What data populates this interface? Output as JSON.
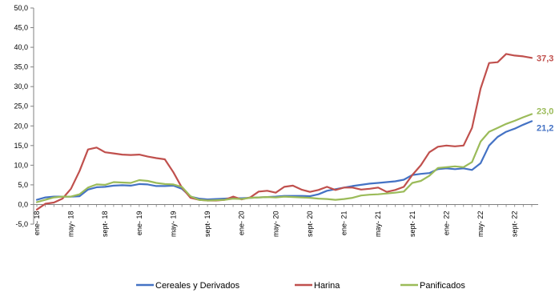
{
  "chart_data": {
    "type": "line",
    "title": "",
    "xlabel": "",
    "ylabel": "",
    "ylim": [
      -5,
      50
    ],
    "yticks": [
      "-5,0",
      "0,0",
      "5,0",
      "10,0",
      "15,0",
      "20,0",
      "25,0",
      "30,0",
      "35,0",
      "40,0",
      "45,0",
      "50,0"
    ],
    "xtick_labels": [
      "ene- 18",
      "may- 18",
      "sept- 18",
      "ene- 19",
      "may- 19",
      "sept- 19",
      "ene- 20",
      "may- 20",
      "sept- 20",
      "ene- 21",
      "may- 21",
      "sept- 21",
      "ene- 22",
      "may- 22",
      "sept- 22"
    ],
    "x_start": "2018-01",
    "x_end": "2022-09",
    "legend_position": "bottom",
    "grid": false,
    "series": [
      {
        "name": "Cereales y Derivados",
        "color": "#4472C4",
        "end_label": "21,2",
        "values": [
          1.2,
          1.8,
          2.0,
          2.0,
          2.0,
          2.1,
          3.8,
          4.4,
          4.5,
          4.8,
          4.9,
          4.8,
          5.2,
          5.1,
          4.7,
          4.7,
          4.8,
          4.0,
          2.0,
          1.5,
          1.3,
          1.4,
          1.5,
          1.6,
          1.6,
          1.7,
          1.8,
          1.9,
          2.0,
          2.2,
          2.2,
          2.2,
          2.1,
          2.6,
          3.5,
          3.9,
          4.3,
          4.7,
          5.0,
          5.3,
          5.5,
          5.7,
          5.9,
          6.3,
          7.5,
          7.8,
          8.0,
          9.0,
          9.2,
          9.0,
          9.2,
          8.8,
          10.5,
          15.0,
          17.2,
          18.5,
          19.3,
          20.3,
          21.2
        ]
      },
      {
        "name": "Harina",
        "color": "#C0504D",
        "end_label": "37,3",
        "values": [
          -1.3,
          0.2,
          0.5,
          1.5,
          4.0,
          8.5,
          14.0,
          14.5,
          13.3,
          13.0,
          12.7,
          12.6,
          12.7,
          12.2,
          11.8,
          11.5,
          8.2,
          4.3,
          1.7,
          1.2,
          1.0,
          1.0,
          1.2,
          2.0,
          1.3,
          1.8,
          3.3,
          3.5,
          3.0,
          4.5,
          4.8,
          3.8,
          3.2,
          3.7,
          4.5,
          3.7,
          4.3,
          4.3,
          3.8,
          4.0,
          4.3,
          3.2,
          3.7,
          4.5,
          7.5,
          10.0,
          13.3,
          14.7,
          15.0,
          14.8,
          15.0,
          19.5,
          29.5,
          36.0,
          36.2,
          38.3,
          37.9,
          37.7,
          37.3
        ]
      },
      {
        "name": "Panificados",
        "color": "#9BBB59",
        "end_label": "23,0",
        "values": [
          0.6,
          1.2,
          1.8,
          2.0,
          2.0,
          2.6,
          4.3,
          5.1,
          5.0,
          5.7,
          5.6,
          5.5,
          6.2,
          6.0,
          5.5,
          5.2,
          5.1,
          4.5,
          2.1,
          1.2,
          1.0,
          1.1,
          1.2,
          1.5,
          1.4,
          1.7,
          1.8,
          1.9,
          1.8,
          2.0,
          1.9,
          1.8,
          1.7,
          1.5,
          1.4,
          1.2,
          1.4,
          1.7,
          2.3,
          2.5,
          2.6,
          2.8,
          3.0,
          3.3,
          5.5,
          6.0,
          7.3,
          9.3,
          9.5,
          9.7,
          9.5,
          10.8,
          16.0,
          18.5,
          19.5,
          20.5,
          21.3,
          22.2,
          23.0
        ]
      }
    ]
  }
}
